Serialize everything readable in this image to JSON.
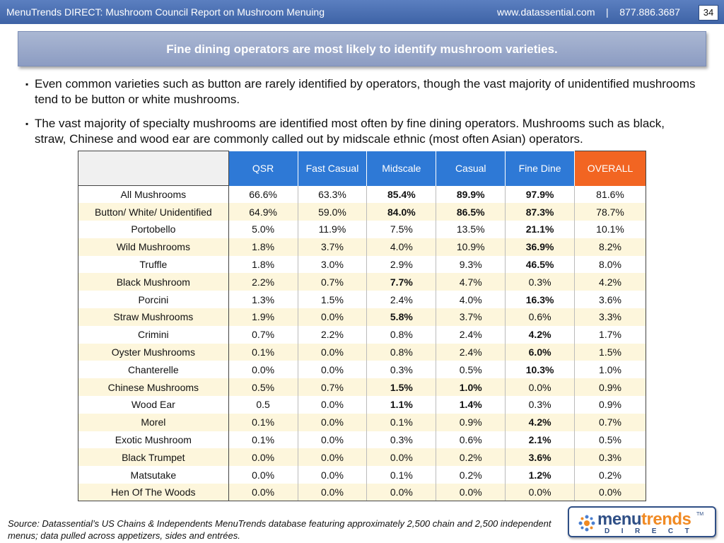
{
  "header": {
    "title": "MenuTrends DIRECT: Mushroom Council Report on Mushroom Menuing",
    "contact": "www.datassential.com    |    877.886.3687",
    "page_number": "34"
  },
  "headline": "Fine dining operators are most likely to identify mushroom varieties.",
  "bullets": [
    "Even common varieties such as button are rarely identified by operators, though the vast majority of unidentified mushrooms tend to be button or white mushrooms.",
    "The vast majority of specialty mushrooms are identified most often by fine dining operators.  Mushrooms such as black, straw, Chinese and wood ear are commonly called out by midscale ethnic (most often Asian) operators."
  ],
  "bullet_marker": "▪",
  "table": {
    "columns": [
      "QSR",
      "Fast Casual",
      "Midscale",
      "Casual",
      "Fine Dine",
      "OVERALL"
    ],
    "rows": [
      {
        "label": "All Mushrooms",
        "values": [
          "66.6%",
          "63.3%",
          "85.4%",
          "89.9%",
          "97.9%",
          "81.6%"
        ],
        "bold": [
          2,
          3,
          4
        ]
      },
      {
        "label": "Button/ White/ Unidentified",
        "values": [
          "64.9%",
          "59.0%",
          "84.0%",
          "86.5%",
          "87.3%",
          "78.7%"
        ],
        "bold": [
          2,
          3,
          4
        ]
      },
      {
        "label": "Portobello",
        "values": [
          "5.0%",
          "11.9%",
          "7.5%",
          "13.5%",
          "21.1%",
          "10.1%"
        ],
        "bold": [
          4
        ]
      },
      {
        "label": "Wild Mushrooms",
        "values": [
          "1.8%",
          "3.7%",
          "4.0%",
          "10.9%",
          "36.9%",
          "8.2%"
        ],
        "bold": [
          4
        ]
      },
      {
        "label": "Truffle",
        "values": [
          "1.8%",
          "3.0%",
          "2.9%",
          "9.3%",
          "46.5%",
          "8.0%"
        ],
        "bold": [
          4
        ]
      },
      {
        "label": "Black Mushroom",
        "values": [
          "2.2%",
          "0.7%",
          "7.7%",
          "4.7%",
          "0.3%",
          "4.2%"
        ],
        "bold": [
          2
        ]
      },
      {
        "label": "Porcini",
        "values": [
          "1.3%",
          "1.5%",
          "2.4%",
          "4.0%",
          "16.3%",
          "3.6%"
        ],
        "bold": [
          4
        ]
      },
      {
        "label": "Straw Mushrooms",
        "values": [
          "1.9%",
          "0.0%",
          "5.8%",
          "3.7%",
          "0.6%",
          "3.3%"
        ],
        "bold": [
          2
        ]
      },
      {
        "label": "Crimini",
        "values": [
          "0.7%",
          "2.2%",
          "0.8%",
          "2.4%",
          "4.2%",
          "1.7%"
        ],
        "bold": [
          4
        ]
      },
      {
        "label": "Oyster Mushrooms",
        "values": [
          "0.1%",
          "0.0%",
          "0.8%",
          "2.4%",
          "6.0%",
          "1.5%"
        ],
        "bold": [
          4
        ]
      },
      {
        "label": "Chanterelle",
        "values": [
          "0.0%",
          "0.0%",
          "0.3%",
          "0.5%",
          "10.3%",
          "1.0%"
        ],
        "bold": [
          4
        ]
      },
      {
        "label": "Chinese Mushrooms",
        "values": [
          "0.5%",
          "0.7%",
          "1.5%",
          "1.0%",
          "0.0%",
          "0.9%"
        ],
        "bold": [
          2,
          3
        ]
      },
      {
        "label": "Wood Ear",
        "values": [
          "0.5",
          "0.0%",
          "1.1%",
          "1.4%",
          "0.3%",
          "0.9%"
        ],
        "bold": [
          2,
          3
        ]
      },
      {
        "label": "Morel",
        "values": [
          "0.1%",
          "0.0%",
          "0.1%",
          "0.9%",
          "4.2%",
          "0.7%"
        ],
        "bold": [
          4
        ]
      },
      {
        "label": "Exotic Mushroom",
        "values": [
          "0.1%",
          "0.0%",
          "0.3%",
          "0.6%",
          "2.1%",
          "0.5%"
        ],
        "bold": [
          4
        ]
      },
      {
        "label": "Black Trumpet",
        "values": [
          "0.0%",
          "0.0%",
          "0.0%",
          "0.2%",
          "3.6%",
          "0.3%"
        ],
        "bold": [
          4
        ]
      },
      {
        "label": "Matsutake",
        "values": [
          "0.0%",
          "0.0%",
          "0.1%",
          "0.2%",
          "1.2%",
          "0.2%"
        ],
        "bold": [
          4
        ]
      },
      {
        "label": "Hen Of The Woods",
        "values": [
          "0.0%",
          "0.0%",
          "0.0%",
          "0.0%",
          "0.0%",
          "0.0%"
        ],
        "bold": []
      }
    ]
  },
  "source": "Source: Datassential’s US Chains & Independents MenuTrends database featuring approximately 2,500 chain and 2,500 independent menus; data pulled across appetizers, sides and entrées.",
  "logo": {
    "word_part1": "menu",
    "word_part2": "trends",
    "trademark": "TM",
    "sub": "DIRECT",
    "icon": "menutrends-logo-icon"
  },
  "colors": {
    "header_blue": "#3e63a6",
    "table_header_blue": "#2e79d6",
    "overall_orange": "#f26522",
    "alt_row": "#fdf6dc"
  }
}
